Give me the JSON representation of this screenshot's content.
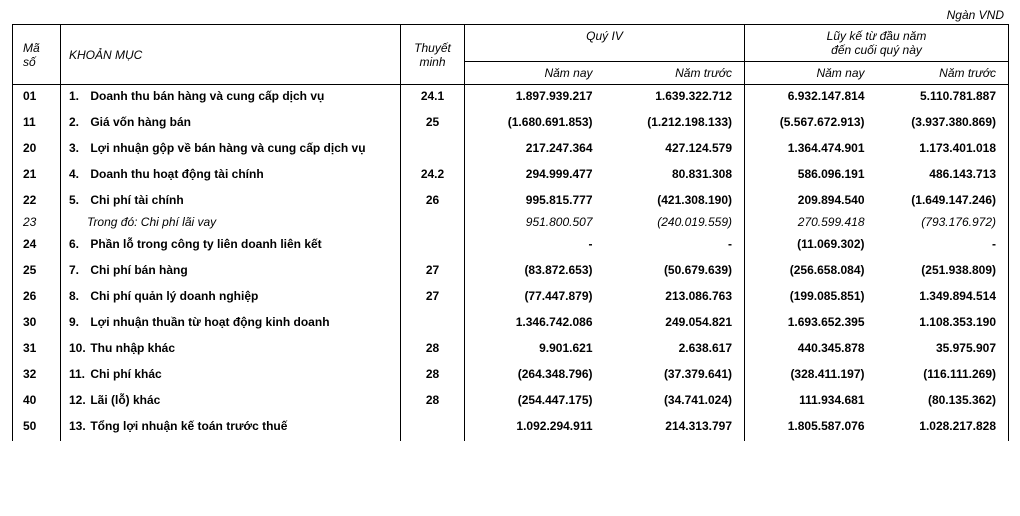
{
  "unit_label": "Ngàn VND",
  "headers": {
    "code": "Mã số",
    "item": "KHOẢN MỤC",
    "note": "Thuyết minh",
    "group_q4": "Quý IV",
    "group_ytd_line1": "Lũy kế từ đầu năm",
    "group_ytd_line2": "đến cuối quý này",
    "this_year": "Năm nay",
    "last_year": "Năm trước"
  },
  "rows": [
    {
      "code": "01",
      "num": "1.",
      "label": "Doanh thu bán hàng và cung cấp dịch vụ",
      "note": "24.1",
      "v1": "1.897.939.217",
      "v2": "1.639.322.712",
      "v3": "6.932.147.814",
      "v4": "5.110.781.887"
    },
    {
      "code": "11",
      "num": "2.",
      "label": "Giá vốn hàng bán",
      "note": "25",
      "v1": "(1.680.691.853)",
      "v2": "(1.212.198.133)",
      "v3": "(5.567.672.913)",
      "v4": "(3.937.380.869)"
    },
    {
      "code": "20",
      "num": "3.",
      "label": "Lợi nhuận gộp về bán hàng và cung cấp dịch vụ",
      "note": "",
      "v1": "217.247.364",
      "v2": "427.124.579",
      "v3": "1.364.474.901",
      "v4": "1.173.401.018"
    },
    {
      "code": "21",
      "num": "4.",
      "label": "Doanh thu hoạt động tài chính",
      "note": "24.2",
      "v1": "294.999.477",
      "v2": "80.831.308",
      "v3": "586.096.191",
      "v4": "486.143.713"
    },
    {
      "code": "22",
      "num": "5.",
      "label": "Chi phí tài chính",
      "note": "26",
      "v1": "995.815.777",
      "v2": "(421.308.190)",
      "v3": "209.894.540",
      "v4": "(1.649.147.246)"
    },
    {
      "sub": true,
      "code": "23",
      "num": "",
      "label": "Trong đó: Chi phí lãi vay",
      "note": "",
      "v1": "951.800.507",
      "v2": "(240.019.559)",
      "v3": "270.599.418",
      "v4": "(793.176.972)"
    },
    {
      "code": "24",
      "num": "6.",
      "label": "Phần lỗ trong công ty liên doanh liên kết",
      "note": "",
      "v1": "-",
      "v2": "-",
      "v3": "(11.069.302)",
      "v4": "-"
    },
    {
      "code": "25",
      "num": "7.",
      "label": "Chi phí bán hàng",
      "note": "27",
      "v1": "(83.872.653)",
      "v2": "(50.679.639)",
      "v3": "(256.658.084)",
      "v4": "(251.938.809)"
    },
    {
      "code": "26",
      "num": "8.",
      "label": "Chi phí quản lý doanh nghiệp",
      "note": "27",
      "v1": "(77.447.879)",
      "v2": "213.086.763",
      "v3": "(199.085.851)",
      "v4": "1.349.894.514"
    },
    {
      "code": "30",
      "num": "9.",
      "label": "Lợi nhuận thuần từ hoạt động kinh doanh",
      "note": "",
      "v1": "1.346.742.086",
      "v2": "249.054.821",
      "v3": "1.693.652.395",
      "v4": "1.108.353.190"
    },
    {
      "code": "31",
      "num": "10.",
      "label": "Thu nhập khác",
      "note": "28",
      "v1": "9.901.621",
      "v2": "2.638.617",
      "v3": "440.345.878",
      "v4": "35.975.907"
    },
    {
      "code": "32",
      "num": "11.",
      "label": "Chi phí khác",
      "note": "28",
      "v1": "(264.348.796)",
      "v2": "(37.379.641)",
      "v3": "(328.411.197)",
      "v4": "(116.111.269)"
    },
    {
      "code": "40",
      "num": "12.",
      "label": "Lãi (lỗ) khác",
      "note": "28",
      "v1": "(254.447.175)",
      "v2": "(34.741.024)",
      "v3": "111.934.681",
      "v4": "(80.135.362)"
    },
    {
      "code": "50",
      "num": "13.",
      "label": "Tổng lợi nhuận kế toán trước thuế",
      "note": "",
      "v1": "1.092.294.911",
      "v2": "214.313.797",
      "v3": "1.805.587.076",
      "v4": "1.028.217.828"
    }
  ]
}
